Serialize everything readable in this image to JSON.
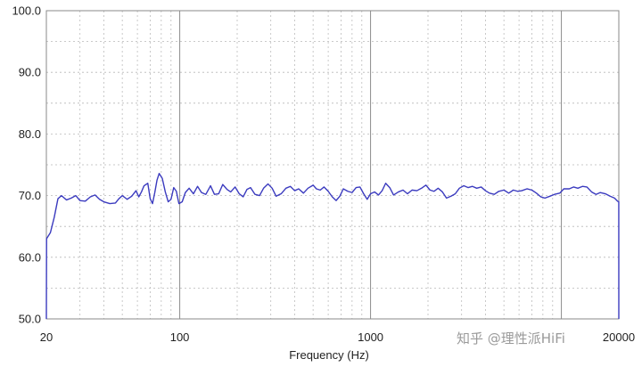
{
  "chart_data": {
    "type": "line",
    "title": "",
    "xlabel": "Frequency (Hz)",
    "ylabel": "",
    "xscale": "log",
    "xlim": [
      20,
      20000
    ],
    "ylim": [
      50,
      100
    ],
    "grid": true,
    "y_tick_labels": [
      "100.0",
      "90.0",
      "80.0",
      "70.0",
      "60.0",
      "50.0"
    ],
    "x_tick_labels": [
      {
        "value": 20,
        "label": "20"
      },
      {
        "value": 100,
        "label": "100"
      },
      {
        "value": 1000,
        "label": "1000"
      },
      {
        "value": 20000,
        "label": "20000"
      }
    ],
    "line_color": "#3b3bbf",
    "series": [
      {
        "points": [
          [
            20,
            50
          ],
          [
            20.05,
            63
          ],
          [
            21,
            64
          ],
          [
            22,
            66.5
          ],
          [
            23,
            69.5
          ],
          [
            24,
            70
          ],
          [
            25.5,
            69.3
          ],
          [
            27,
            69.6
          ],
          [
            28.5,
            70
          ],
          [
            30,
            69.2
          ],
          [
            32,
            69.1
          ],
          [
            34,
            69.8
          ],
          [
            36,
            70.1
          ],
          [
            38,
            69.4
          ],
          [
            40,
            69
          ],
          [
            43,
            68.7
          ],
          [
            46,
            68.8
          ],
          [
            48,
            69.5
          ],
          [
            50,
            70
          ],
          [
            53,
            69.4
          ],
          [
            56,
            69.9
          ],
          [
            59,
            70.8
          ],
          [
            61,
            69.8
          ],
          [
            63,
            70.6
          ],
          [
            65,
            71.6
          ],
          [
            68,
            72
          ],
          [
            70,
            69.5
          ],
          [
            72,
            68.7
          ],
          [
            74,
            70.5
          ],
          [
            76,
            72.5
          ],
          [
            78,
            73.6
          ],
          [
            81,
            72.8
          ],
          [
            84,
            70.6
          ],
          [
            87,
            69
          ],
          [
            90,
            69.4
          ],
          [
            93,
            71.3
          ],
          [
            96,
            70.7
          ],
          [
            99,
            68.7
          ],
          [
            103,
            69
          ],
          [
            107,
            70.5
          ],
          [
            112,
            71.2
          ],
          [
            118,
            70.3
          ],
          [
            124,
            71.5
          ],
          [
            130,
            70.5
          ],
          [
            137,
            70.2
          ],
          [
            145,
            71.6
          ],
          [
            152,
            70.2
          ],
          [
            160,
            70.3
          ],
          [
            168,
            71.8
          ],
          [
            177,
            71
          ],
          [
            185,
            70.6
          ],
          [
            195,
            71.4
          ],
          [
            205,
            70.3
          ],
          [
            215,
            69.8
          ],
          [
            225,
            71
          ],
          [
            235,
            71.3
          ],
          [
            248,
            70.2
          ],
          [
            262,
            70
          ],
          [
            275,
            71.2
          ],
          [
            290,
            71.9
          ],
          [
            305,
            71.2
          ],
          [
            320,
            69.9
          ],
          [
            340,
            70.3
          ],
          [
            360,
            71.2
          ],
          [
            380,
            71.5
          ],
          [
            400,
            70.8
          ],
          [
            420,
            71.1
          ],
          [
            445,
            70.4
          ],
          [
            470,
            71.2
          ],
          [
            500,
            71.7
          ],
          [
            520,
            71.1
          ],
          [
            545,
            70.9
          ],
          [
            570,
            71.4
          ],
          [
            600,
            70.7
          ],
          [
            630,
            69.8
          ],
          [
            660,
            69.2
          ],
          [
            690,
            69.9
          ],
          [
            720,
            71.1
          ],
          [
            760,
            70.7
          ],
          [
            800,
            70.5
          ],
          [
            840,
            71.3
          ],
          [
            880,
            71.4
          ],
          [
            920,
            70.3
          ],
          [
            960,
            69.4
          ],
          [
            1000,
            70.3
          ],
          [
            1050,
            70.6
          ],
          [
            1100,
            70.1
          ],
          [
            1150,
            70.8
          ],
          [
            1200,
            72
          ],
          [
            1260,
            71.3
          ],
          [
            1320,
            70.1
          ],
          [
            1400,
            70.6
          ],
          [
            1480,
            70.9
          ],
          [
            1560,
            70.3
          ],
          [
            1650,
            70.9
          ],
          [
            1750,
            70.8
          ],
          [
            1850,
            71.2
          ],
          [
            1950,
            71.7
          ],
          [
            2050,
            70.9
          ],
          [
            2150,
            70.7
          ],
          [
            2260,
            71.2
          ],
          [
            2380,
            70.6
          ],
          [
            2500,
            69.6
          ],
          [
            2640,
            69.9
          ],
          [
            2780,
            70.3
          ],
          [
            2920,
            71.2
          ],
          [
            3080,
            71.6
          ],
          [
            3250,
            71.3
          ],
          [
            3420,
            71.5
          ],
          [
            3600,
            71.2
          ],
          [
            3800,
            71.4
          ],
          [
            4000,
            70.8
          ],
          [
            4200,
            70.4
          ],
          [
            4450,
            70.2
          ],
          [
            4700,
            70.7
          ],
          [
            5000,
            70.9
          ],
          [
            5300,
            70.4
          ],
          [
            5600,
            70.9
          ],
          [
            5900,
            70.7
          ],
          [
            6200,
            70.8
          ],
          [
            6600,
            71.1
          ],
          [
            7000,
            70.9
          ],
          [
            7400,
            70.4
          ],
          [
            7800,
            69.8
          ],
          [
            8200,
            69.6
          ],
          [
            8700,
            69.9
          ],
          [
            9200,
            70.2
          ],
          [
            9800,
            70.4
          ],
          [
            10300,
            71.1
          ],
          [
            11000,
            71.1
          ],
          [
            11600,
            71.4
          ],
          [
            12200,
            71.2
          ],
          [
            12900,
            71.5
          ],
          [
            13600,
            71.4
          ],
          [
            14400,
            70.6
          ],
          [
            15200,
            70.2
          ],
          [
            16000,
            70.5
          ],
          [
            17000,
            70.3
          ],
          [
            18000,
            69.9
          ],
          [
            19000,
            69.6
          ],
          [
            19700,
            69.1
          ],
          [
            19990,
            69
          ],
          [
            20000,
            50
          ]
        ]
      }
    ]
  },
  "watermark": {
    "text": "知乎 @理性派HiFi"
  }
}
